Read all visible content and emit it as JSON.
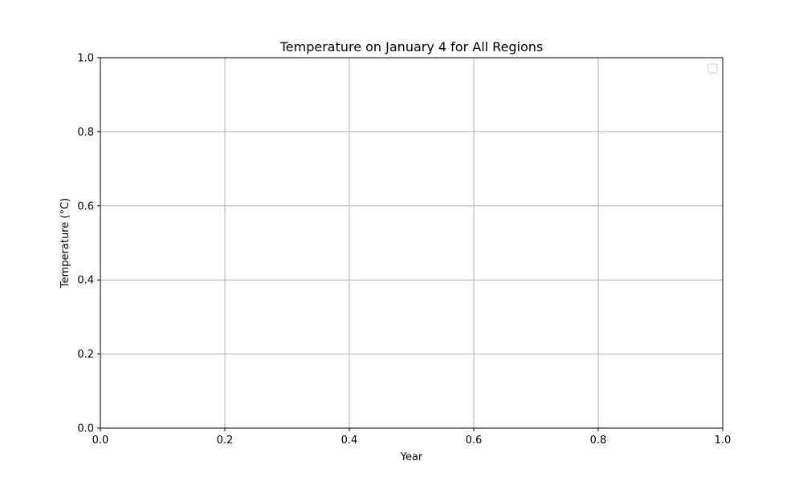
{
  "chart_data": {
    "type": "line",
    "title": "Temperature on January 4 for All Regions",
    "xlabel": "Year",
    "ylabel": "Temperature (°C)",
    "xlim": [
      0.0,
      1.0
    ],
    "ylim": [
      0.0,
      1.0
    ],
    "x_ticks": [
      "0.0",
      "0.2",
      "0.4",
      "0.6",
      "0.8",
      "1.0"
    ],
    "y_ticks": [
      "0.0",
      "0.2",
      "0.4",
      "0.6",
      "0.8",
      "1.0"
    ],
    "grid": true,
    "legend": "top-right",
    "series": []
  },
  "colors": {
    "grid": "#b0b0b0",
    "axis": "#000000",
    "legend_border": "#cccccc"
  }
}
